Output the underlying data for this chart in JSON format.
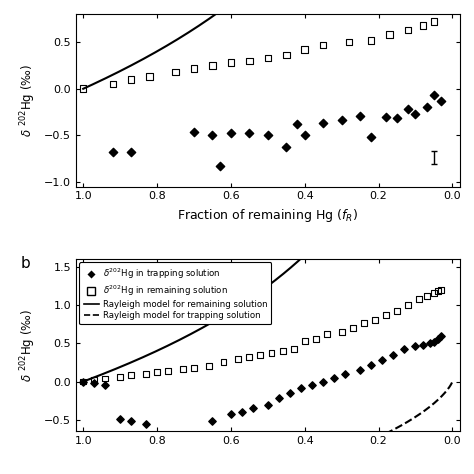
{
  "panel_a": {
    "squares_x": [
      1.0,
      0.92,
      0.87,
      0.82,
      0.75,
      0.7,
      0.65,
      0.6,
      0.55,
      0.5,
      0.45,
      0.4,
      0.35,
      0.28,
      0.22,
      0.17,
      0.12,
      0.08,
      0.05
    ],
    "squares_y": [
      0.0,
      0.05,
      0.1,
      0.13,
      0.18,
      0.22,
      0.25,
      0.28,
      0.3,
      0.33,
      0.36,
      0.42,
      0.47,
      0.5,
      0.52,
      0.58,
      0.63,
      0.68,
      0.72
    ],
    "diamonds_x": [
      0.92,
      0.87,
      0.7,
      0.65,
      0.63,
      0.6,
      0.55,
      0.5,
      0.45,
      0.42,
      0.4,
      0.35,
      0.3,
      0.25,
      0.22,
      0.18,
      0.15,
      0.12,
      0.1,
      0.07,
      0.05,
      0.03
    ],
    "diamonds_y": [
      -0.68,
      -0.68,
      -0.46,
      -0.5,
      -0.83,
      -0.47,
      -0.48,
      -0.5,
      -0.63,
      -0.38,
      -0.5,
      -0.37,
      -0.33,
      -0.29,
      -0.52,
      -0.3,
      -0.31,
      -0.22,
      -0.27,
      -0.2,
      -0.07,
      -0.13
    ],
    "alpha": 0.9982,
    "ylim": [
      -1.05,
      0.8
    ],
    "yticks": [
      -1.0,
      -0.5,
      0.0,
      0.5
    ],
    "xlim": [
      1.02,
      -0.02
    ],
    "xticks": [
      1.0,
      0.8,
      0.6,
      0.4,
      0.2,
      0.0
    ],
    "error_bar_x": 0.05,
    "error_bar_y": -0.74,
    "error_bar_size": 0.14
  },
  "panel_b": {
    "squares_x": [
      1.0,
      0.97,
      0.94,
      0.9,
      0.87,
      0.83,
      0.8,
      0.77,
      0.73,
      0.7,
      0.66,
      0.62,
      0.58,
      0.55,
      0.52,
      0.49,
      0.46,
      0.43,
      0.4,
      0.37,
      0.34,
      0.3,
      0.27,
      0.24,
      0.21,
      0.18,
      0.15,
      0.12,
      0.09,
      0.07,
      0.05,
      0.04,
      0.03
    ],
    "squares_y": [
      0.0,
      0.02,
      0.04,
      0.06,
      0.08,
      0.1,
      0.12,
      0.14,
      0.16,
      0.18,
      0.2,
      0.25,
      0.3,
      0.32,
      0.35,
      0.37,
      0.4,
      0.43,
      0.53,
      0.56,
      0.62,
      0.65,
      0.7,
      0.76,
      0.8,
      0.87,
      0.92,
      1.0,
      1.08,
      1.12,
      1.16,
      1.18,
      1.2
    ],
    "diamonds_x": [
      1.0,
      0.97,
      0.94,
      0.9,
      0.87,
      0.83,
      0.65,
      0.6,
      0.57,
      0.54,
      0.5,
      0.47,
      0.44,
      0.41,
      0.38,
      0.35,
      0.32,
      0.29,
      0.25,
      0.22,
      0.19,
      0.16,
      0.13,
      0.1,
      0.08,
      0.06,
      0.05,
      0.04,
      0.03
    ],
    "diamonds_y": [
      0.0,
      -0.02,
      -0.04,
      -0.49,
      -0.52,
      -0.55,
      -0.52,
      -0.43,
      -0.4,
      -0.35,
      -0.3,
      -0.22,
      -0.15,
      -0.08,
      -0.05,
      0.0,
      0.05,
      0.1,
      0.15,
      0.22,
      0.28,
      0.35,
      0.42,
      0.46,
      0.48,
      0.5,
      0.52,
      0.55,
      0.6
    ],
    "alpha_remaining": 0.9982,
    "ylim": [
      -0.65,
      1.6
    ],
    "yticks": [
      -0.5,
      0.0,
      0.5,
      1.0,
      1.5
    ],
    "xlim": [
      1.02,
      -0.02
    ],
    "xticks": [
      1.0,
      0.8,
      0.6,
      0.4,
      0.2,
      0.0
    ]
  },
  "ylabel": "$\\delta$ $^{202}$Hg (‰)",
  "xlabel_a": "Fraction of remaining Hg ($f_R$)",
  "bg_color": "#ffffff",
  "line_color": "#000000"
}
